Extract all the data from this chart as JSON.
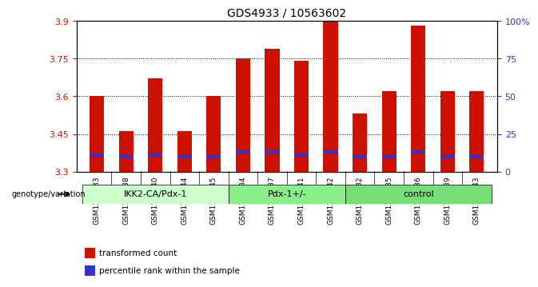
{
  "title": "GDS4933 / 10563602",
  "samples": [
    "GSM1151233",
    "GSM1151238",
    "GSM1151240",
    "GSM1151244",
    "GSM1151245",
    "GSM1151234",
    "GSM1151237",
    "GSM1151241",
    "GSM1151242",
    "GSM1151232",
    "GSM1151235",
    "GSM1151236",
    "GSM1151239",
    "GSM1151243"
  ],
  "bar_values": [
    3.6,
    3.46,
    3.67,
    3.46,
    3.6,
    3.75,
    3.79,
    3.74,
    3.9,
    3.53,
    3.62,
    3.88,
    3.62,
    3.62
  ],
  "blue_marker_values": [
    3.37,
    3.36,
    3.37,
    3.36,
    3.36,
    3.38,
    3.38,
    3.37,
    3.38,
    3.36,
    3.36,
    3.38,
    3.36,
    3.36
  ],
  "bar_bottom": 3.3,
  "ylim_min": 3.3,
  "ylim_max": 3.9,
  "yticks_left": [
    3.3,
    3.45,
    3.6,
    3.75,
    3.9
  ],
  "yticks_right": [
    0,
    25,
    50,
    75,
    100
  ],
  "ytick_labels_left": [
    "3.3",
    "3.45",
    "3.6",
    "3.75",
    "3.9"
  ],
  "ytick_labels_right": [
    "0",
    "25",
    "50",
    "75",
    "100%"
  ],
  "groups": [
    {
      "label": "IKK2-CA/Pdx-1",
      "start": 0,
      "end": 5,
      "color": "#ccffcc"
    },
    {
      "label": "Pdx-1+/-",
      "start": 5,
      "end": 9,
      "color": "#99ee99"
    },
    {
      "label": "control",
      "start": 9,
      "end": 14,
      "color": "#77dd77"
    }
  ],
  "bar_color": "#cc1100",
  "blue_color": "#3333cc",
  "bg_color": "#dddddd",
  "plot_bg": "#ffffff",
  "grid_color": "#000000",
  "left_tick_color": "#cc1100",
  "right_tick_color": "#3333cc",
  "genotype_label": "genotype/variation",
  "legend_items": [
    {
      "color": "#cc1100",
      "label": "transformed count"
    },
    {
      "color": "#3333cc",
      "label": "percentile rank within the sample"
    }
  ]
}
